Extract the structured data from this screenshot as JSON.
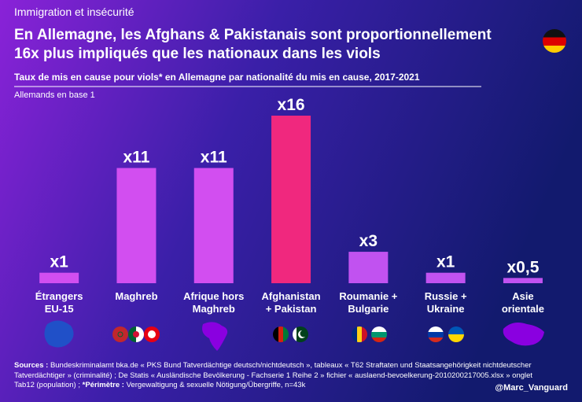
{
  "chart_data": {
    "type": "bar",
    "kicker": "Immigration et insécurité",
    "title": [
      "En Allemagne, les Afghans & Pakistanais sont proportionnellement",
      "16x plus impliqués que les nationaux dans les viols"
    ],
    "subtitle": "Taux de mis en cause pour viols* en Allemagne par nationalité du mis en cause, 2017-2021",
    "annotation": "Allemands en base 1",
    "categories": [
      [
        "Étrangers",
        "EU-15"
      ],
      [
        "Maghreb"
      ],
      [
        "Afrique hors",
        "Maghreb"
      ],
      [
        "Afghanistan",
        "+ Pakistan"
      ],
      [
        "Roumanie +",
        "Bulgarie"
      ],
      [
        "Russie +",
        "Ukraine"
      ],
      [
        "Asie",
        "orientale"
      ]
    ],
    "values": [
      1,
      11,
      11,
      16,
      3,
      1,
      0.5
    ],
    "value_labels": [
      "x1",
      "x11",
      "x11",
      "x16",
      "x3",
      "x1",
      "x0,5"
    ],
    "colors": [
      "#d24ef0",
      "#d24ef0",
      "#d24ef0",
      "#f0287e",
      "#c152f0",
      "#c152f0",
      "#c152f0"
    ],
    "source": {
      "label": "Sources :",
      "text": "Bundeskriminalamt bka.de « PKS Bund Tatverdächtige deutsch/nichtdeutsch », tableaux « T62 Straftaten und Staatsangehörigkeit nichtdeutscher Tatverdächtiger » (criminalité) ; De Statis « Ausländische Bevölkerung - Fachserie 1 Reihe 2 » fichier « auslaend-bevoelkerung-2010200217005.xlsx » onglet Tab12 (population) ;",
      "scope_label": "*Périmètre :",
      "scope_text": "Vergewaltigung & sexuelle Nötigung/Übergriffe, n=43k"
    },
    "credit": "@Marc_Vanguard"
  }
}
